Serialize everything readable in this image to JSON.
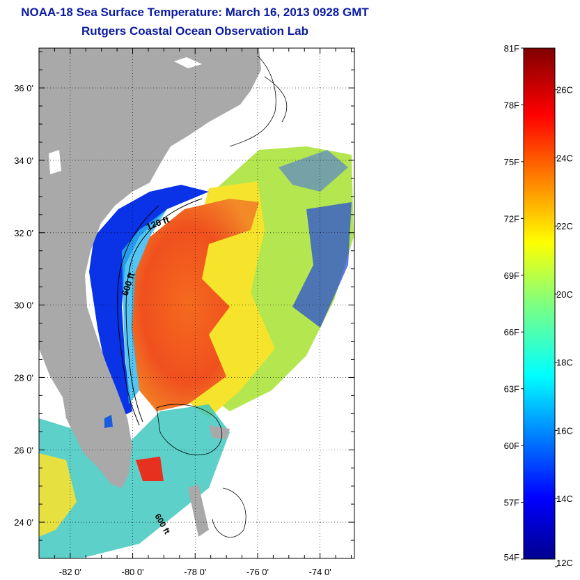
{
  "title": "NOAA-18 Sea Surface Temperature:  March 16, 2013 0928 GMT",
  "subtitle": "Rutgers Coastal Ocean Observation Lab",
  "map": {
    "lat_ticks": [
      {
        "value": 36,
        "label": "36 0'"
      },
      {
        "value": 34,
        "label": "34 0'"
      },
      {
        "value": 32,
        "label": "32 0'"
      },
      {
        "value": 30,
        "label": "30 0'"
      },
      {
        "value": 28,
        "label": "28 0'"
      },
      {
        "value": 26,
        "label": "26 0'"
      },
      {
        "value": 24,
        "label": "24 0'"
      }
    ],
    "lon_ticks": [
      {
        "value": -82,
        "label": "-82 0'"
      },
      {
        "value": -80,
        "label": "-80 0'"
      },
      {
        "value": -78,
        "label": "-78 0'"
      },
      {
        "value": -76,
        "label": "-76 0'"
      },
      {
        "value": -74,
        "label": "-74 0'"
      }
    ],
    "lat_range": [
      23,
      37.1
    ],
    "lon_range": [
      -83,
      -72.9
    ],
    "contour_labels": {
      "c120": "120 ft",
      "c600": "600 ft",
      "c600b": "600 ft"
    },
    "colors": {
      "land": "#a9a9a9",
      "gulf_stream": "#f0501e",
      "shelf_cold": "#0a32e6",
      "offshore": "#b4e650"
    }
  },
  "colorbar": {
    "f_labels": [
      "81F",
      "78F",
      "75F",
      "72F",
      "69F",
      "66F",
      "63F",
      "60F",
      "57F",
      "54F"
    ],
    "c_labels": [
      "26C",
      "24C",
      "22C",
      "20C",
      "18C",
      "16C",
      "14C",
      "12C"
    ],
    "f_range": [
      54,
      81
    ]
  }
}
